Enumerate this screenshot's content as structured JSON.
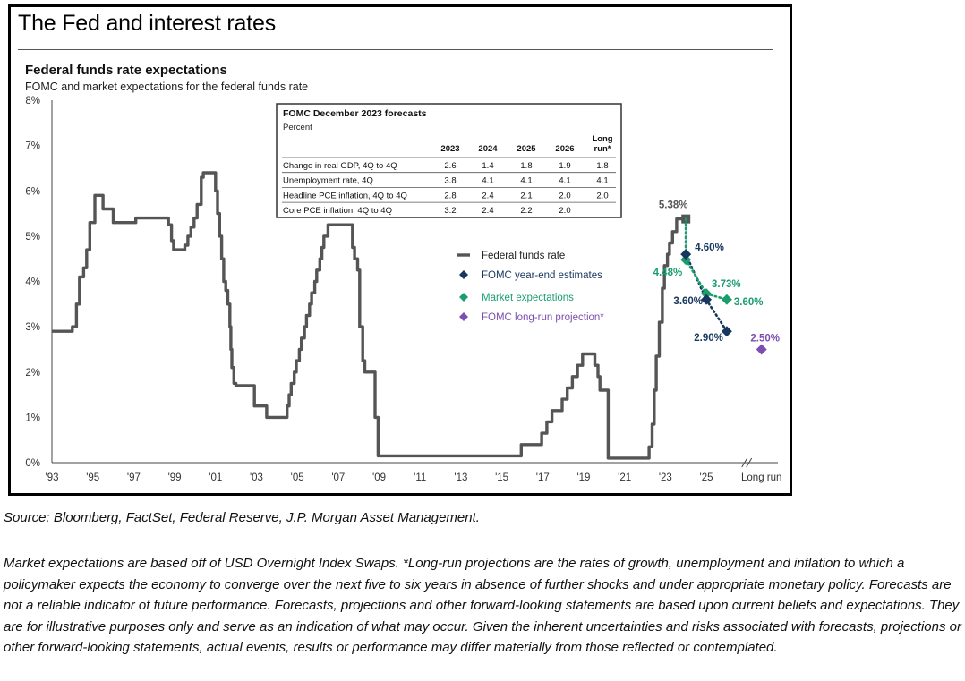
{
  "header": {
    "title": "The Fed and interest rates"
  },
  "source": "Source: Bloomberg, FactSet, Federal Reserve, J.P. Morgan Asset Management.",
  "notes": "Market expectations are based off of USD Overnight Index Swaps. *Long-run projections are the rates of growth, unemployment and inflation to which a policymaker expects the economy to converge over the next five to six years in absence of further shocks and under appropriate monetary policy. Forecasts are not a reliable indicator of future performance. Forecasts, projections and other forward-looking statements are based upon current beliefs and expectations. They are for illustrative purposes only and serve as an indication of what may occur. Given the inherent uncertainties and risks associated with forecasts, projections or other forward-looking statements, actual events, results or performance may differ materially from those reflected or contemplated.",
  "chart_data": {
    "type": "line",
    "title": "Federal funds rate expectations",
    "subtitle": "FOMC and market expectations for the federal funds rate",
    "ylim": [
      0,
      8
    ],
    "yticks": [
      "0%",
      "1%",
      "2%",
      "3%",
      "4%",
      "5%",
      "6%",
      "7%",
      "8%"
    ],
    "xlim": [
      1993,
      2028.5
    ],
    "xticks": [
      {
        "x": 1993,
        "label": "'93"
      },
      {
        "x": 1995,
        "label": "'95"
      },
      {
        "x": 1997,
        "label": "'97"
      },
      {
        "x": 1999,
        "label": "'99"
      },
      {
        "x": 2001,
        "label": "'01"
      },
      {
        "x": 2003,
        "label": "'03"
      },
      {
        "x": 2005,
        "label": "'05"
      },
      {
        "x": 2007,
        "label": "'07"
      },
      {
        "x": 2009,
        "label": "'09"
      },
      {
        "x": 2011,
        "label": "'11"
      },
      {
        "x": 2013,
        "label": "'13"
      },
      {
        "x": 2015,
        "label": "'15"
      },
      {
        "x": 2017,
        "label": "'17"
      },
      {
        "x": 2019,
        "label": "'19"
      },
      {
        "x": 2021,
        "label": "'21"
      },
      {
        "x": 2023,
        "label": "'23"
      },
      {
        "x": 2025,
        "label": "'25"
      },
      {
        "x": 2027.7,
        "label": "Long run"
      }
    ],
    "grid": false,
    "legend": {
      "placement": "center-right",
      "entries": [
        {
          "name": "Federal funds rate",
          "marker": "line",
          "color": "#555555"
        },
        {
          "name": "FOMC year-end estimates",
          "marker": "diamond",
          "color": "#17375e"
        },
        {
          "name": "Market expectations",
          "marker": "diamond",
          "color": "#1a9e6e"
        },
        {
          "name": "FOMC long-run projection*",
          "marker": "diamond",
          "color": "#7b4fb0"
        }
      ]
    },
    "series": [
      {
        "name": "Federal funds rate",
        "color": "#555555",
        "step": true,
        "points": [
          [
            1993.0,
            2.9
          ],
          [
            1994.0,
            3.0
          ],
          [
            1994.2,
            3.5
          ],
          [
            1994.35,
            4.1
          ],
          [
            1994.55,
            4.3
          ],
          [
            1994.7,
            4.7
          ],
          [
            1994.85,
            5.3
          ],
          [
            1995.1,
            5.9
          ],
          [
            1995.5,
            5.6
          ],
          [
            1996.0,
            5.3
          ],
          [
            1997.1,
            5.4
          ],
          [
            1998.7,
            5.25
          ],
          [
            1998.85,
            4.9
          ],
          [
            1998.95,
            4.7
          ],
          [
            1999.5,
            4.8
          ],
          [
            1999.65,
            5.0
          ],
          [
            1999.8,
            5.2
          ],
          [
            1999.95,
            5.4
          ],
          [
            2000.1,
            5.7
          ],
          [
            2000.3,
            6.3
          ],
          [
            2000.4,
            6.4
          ],
          [
            2001.0,
            6.0
          ],
          [
            2001.1,
            5.5
          ],
          [
            2001.2,
            5.0
          ],
          [
            2001.3,
            4.5
          ],
          [
            2001.4,
            4.0
          ],
          [
            2001.5,
            3.8
          ],
          [
            2001.6,
            3.5
          ],
          [
            2001.7,
            3.0
          ],
          [
            2001.75,
            2.5
          ],
          [
            2001.8,
            2.1
          ],
          [
            2001.9,
            1.75
          ],
          [
            2002.0,
            1.7
          ],
          [
            2002.9,
            1.25
          ],
          [
            2003.5,
            1.0
          ],
          [
            2004.5,
            1.25
          ],
          [
            2004.6,
            1.5
          ],
          [
            2004.7,
            1.75
          ],
          [
            2004.85,
            2.0
          ],
          [
            2004.95,
            2.25
          ],
          [
            2005.1,
            2.5
          ],
          [
            2005.2,
            2.75
          ],
          [
            2005.35,
            3.0
          ],
          [
            2005.45,
            3.25
          ],
          [
            2005.6,
            3.5
          ],
          [
            2005.7,
            3.75
          ],
          [
            2005.85,
            4.0
          ],
          [
            2005.95,
            4.25
          ],
          [
            2006.1,
            4.5
          ],
          [
            2006.2,
            4.75
          ],
          [
            2006.3,
            5.0
          ],
          [
            2006.5,
            5.25
          ],
          [
            2007.7,
            4.75
          ],
          [
            2007.8,
            4.5
          ],
          [
            2007.95,
            4.25
          ],
          [
            2008.05,
            3.0
          ],
          [
            2008.2,
            2.25
          ],
          [
            2008.3,
            2.0
          ],
          [
            2008.8,
            1.0
          ],
          [
            2008.95,
            0.15
          ],
          [
            2015.95,
            0.4
          ],
          [
            2016.95,
            0.65
          ],
          [
            2017.2,
            0.9
          ],
          [
            2017.45,
            1.15
          ],
          [
            2017.95,
            1.4
          ],
          [
            2018.2,
            1.65
          ],
          [
            2018.45,
            1.9
          ],
          [
            2018.7,
            2.15
          ],
          [
            2018.95,
            2.4
          ],
          [
            2019.55,
            2.15
          ],
          [
            2019.7,
            1.9
          ],
          [
            2019.8,
            1.6
          ],
          [
            2020.2,
            0.1
          ],
          [
            2022.2,
            0.35
          ],
          [
            2022.35,
            0.85
          ],
          [
            2022.45,
            1.6
          ],
          [
            2022.55,
            2.35
          ],
          [
            2022.7,
            3.1
          ],
          [
            2022.85,
            3.85
          ],
          [
            2022.95,
            4.35
          ],
          [
            2023.1,
            4.6
          ],
          [
            2023.2,
            4.85
          ],
          [
            2023.35,
            5.1
          ],
          [
            2023.55,
            5.38
          ],
          [
            2024.0,
            5.38
          ]
        ]
      },
      {
        "name": "FOMC year-end estimates",
        "color": "#17375e",
        "points": [
          [
            2024.0,
            4.6
          ],
          [
            2025.0,
            3.6
          ],
          [
            2026.0,
            2.9
          ]
        ],
        "labels": [
          "4.60%",
          "3.60%",
          "2.90%"
        ]
      },
      {
        "name": "Market expectations",
        "color": "#1a9e6e",
        "points": [
          [
            2024.0,
            4.48
          ],
          [
            2025.0,
            3.73
          ],
          [
            2026.0,
            3.6
          ]
        ],
        "labels": [
          "4.48%",
          "3.73%",
          "3.60%"
        ]
      },
      {
        "name": "FOMC long-run projection*",
        "color": "#7b4fb0",
        "points": [
          [
            2027.7,
            2.5
          ]
        ],
        "labels": [
          "2.50%"
        ]
      }
    ],
    "annotations": [
      {
        "text": "5.38%",
        "x": 2024.0,
        "y": 5.38
      }
    ],
    "table": {
      "title": "FOMC December 2023 forecasts",
      "subtitle": "Percent",
      "columns": [
        "2023",
        "2024",
        "2025",
        "2026",
        "Long run*"
      ],
      "column_lines": [
        [
          "2023"
        ],
        [
          "2024"
        ],
        [
          "2025"
        ],
        [
          "2026"
        ],
        [
          "Long",
          "run*"
        ]
      ],
      "rows": [
        {
          "label": "Change in real GDP, 4Q to 4Q",
          "values": [
            "2.6",
            "1.4",
            "1.8",
            "1.9",
            "1.8"
          ]
        },
        {
          "label": "Unemployment rate, 4Q",
          "values": [
            "3.8",
            "4.1",
            "4.1",
            "4.1",
            "4.1"
          ]
        },
        {
          "label": "Headline PCE inflation, 4Q to 4Q",
          "values": [
            "2.8",
            "2.4",
            "2.1",
            "2.0",
            "2.0"
          ]
        },
        {
          "label": "Core PCE inflation, 4Q to 4Q",
          "values": [
            "3.2",
            "2.4",
            "2.2",
            "2.0",
            ""
          ]
        }
      ]
    }
  }
}
